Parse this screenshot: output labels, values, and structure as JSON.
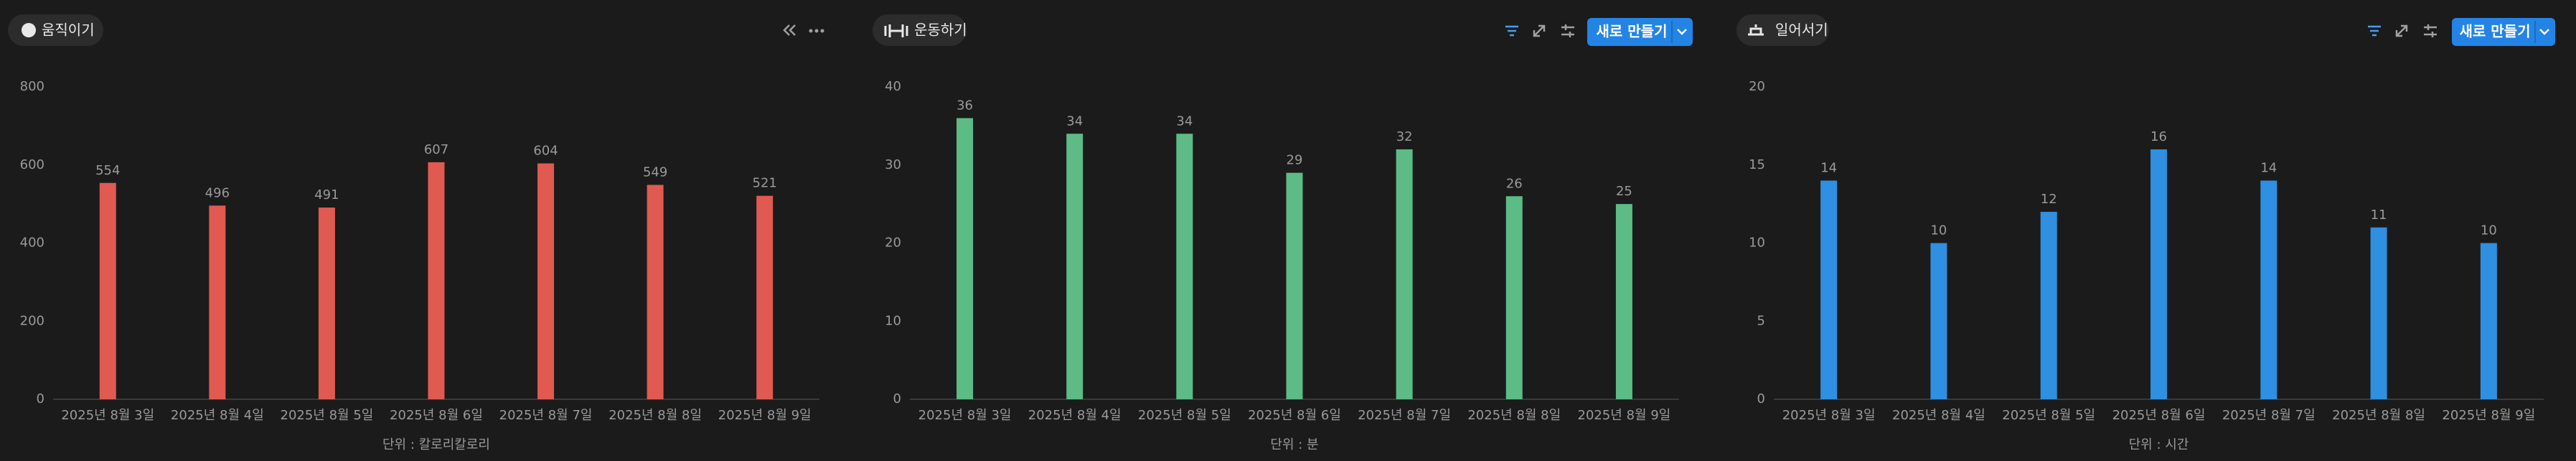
{
  "chart_data": [
    {
      "type": "bar",
      "title": "움직이기",
      "x_label": "단위 : 칼로리칼로리",
      "color": "#e05a52",
      "categories": [
        "2025년 8월 3일",
        "2025년 8월 4일",
        "2025년 8월 5일",
        "2025년 8월 6일",
        "2025년 8월 7일",
        "2025년 8월 8일",
        "2025년 8월 9일"
      ],
      "values": [
        554,
        496,
        491,
        607,
        604,
        549,
        521
      ],
      "ylim": [
        0,
        800
      ],
      "yticks": [
        0,
        200,
        400,
        600,
        800
      ]
    },
    {
      "type": "bar",
      "title": "운동하기",
      "x_label": "단위 : 분",
      "color": "#5dbb86",
      "categories": [
        "2025년 8월 3일",
        "2025년 8월 4일",
        "2025년 8월 5일",
        "2025년 8월 6일",
        "2025년 8월 7일",
        "2025년 8월 8일",
        "2025년 8월 9일"
      ],
      "values": [
        36,
        34,
        34,
        29,
        32,
        26,
        25
      ],
      "ylim": [
        0,
        40
      ],
      "yticks": [
        0,
        10,
        20,
        30,
        40
      ]
    },
    {
      "type": "bar",
      "title": "일어서기",
      "x_label": "단위 : 시간",
      "color": "#2f8fe0",
      "categories": [
        "2025년 8월 3일",
        "2025년 8월 4일",
        "2025년 8월 5일",
        "2025년 8월 6일",
        "2025년 8월 7일",
        "2025년 8월 8일",
        "2025년 8월 9일"
      ],
      "values": [
        14,
        10,
        12,
        16,
        14,
        11,
        10
      ],
      "ylim": [
        0,
        20
      ],
      "yticks": [
        0,
        5,
        10,
        15,
        20
      ]
    }
  ],
  "actions": [
    "새로 만들기",
    "새로 만들기"
  ]
}
